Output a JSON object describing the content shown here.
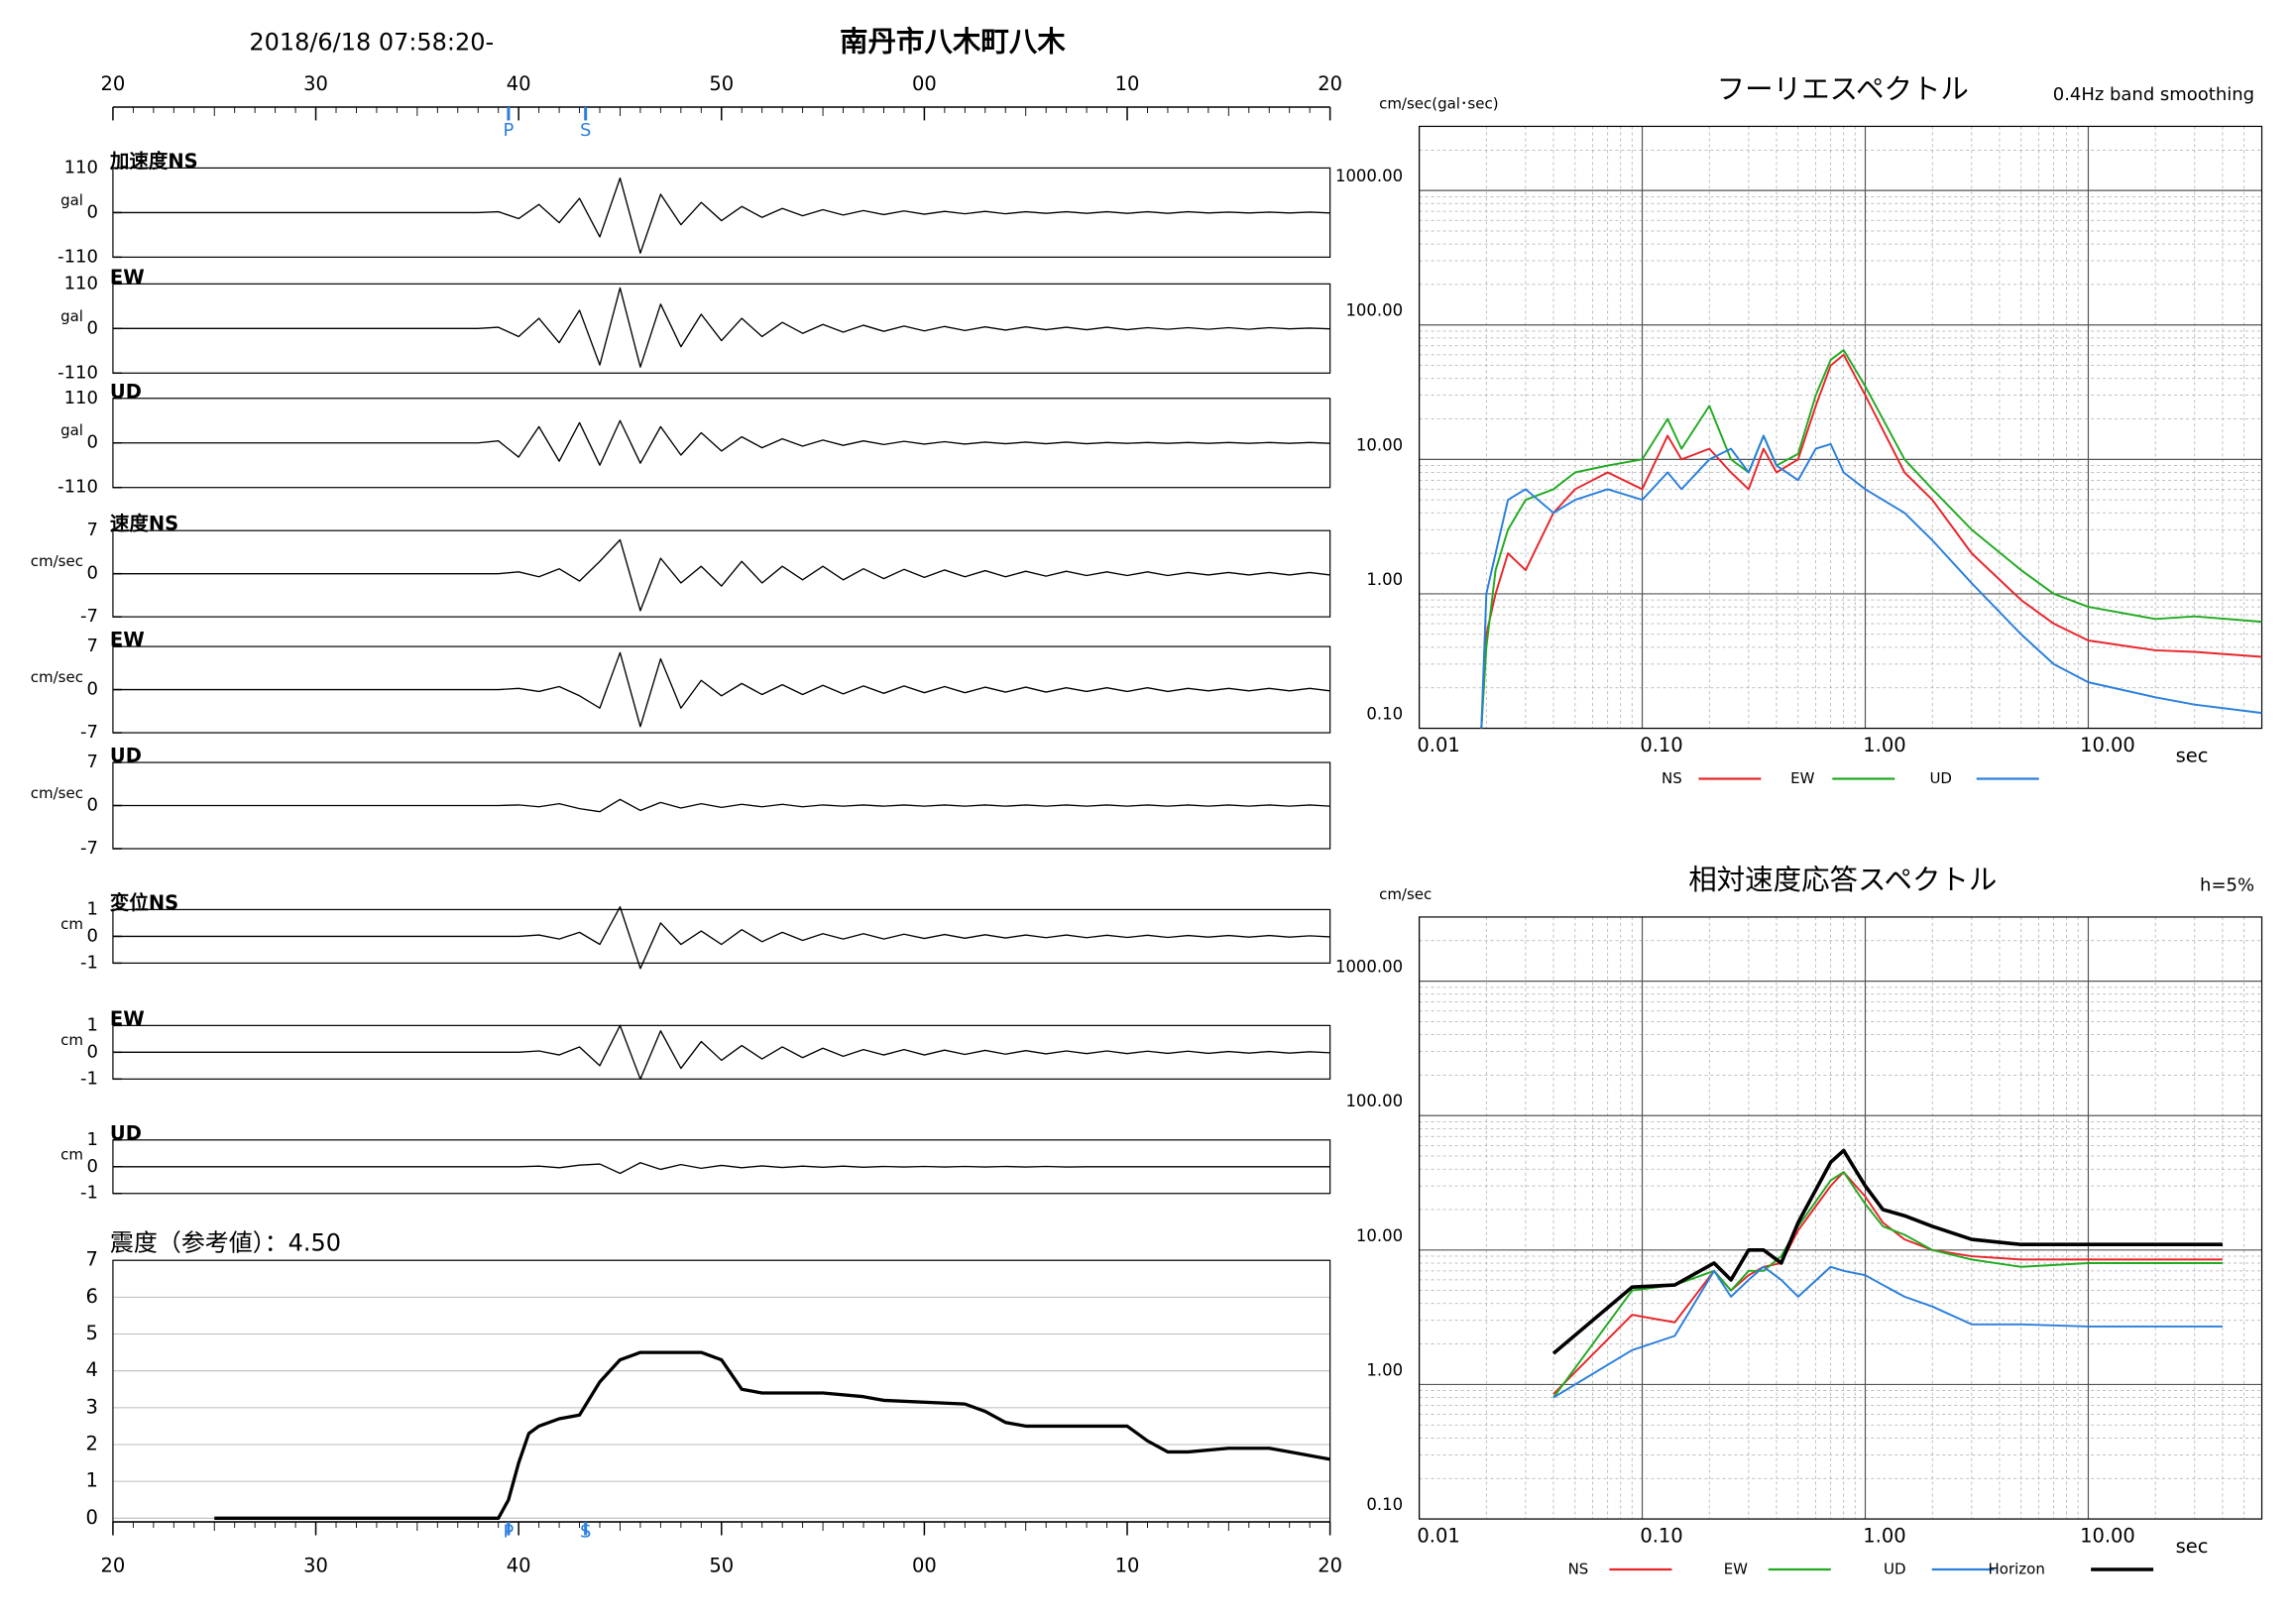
{
  "header": {
    "datetime": "2018/6/18 07:58:20-",
    "station": "南丹市八木町八木"
  },
  "time_axis": {
    "xlim": [
      20,
      80
    ],
    "xticks": [
      20,
      30,
      40,
      50,
      {
        "value": 60,
        "label": "00"
      },
      {
        "value": 70,
        "label": "10"
      },
      {
        "value": 80,
        "label": "20"
      }
    ],
    "markers": [
      {
        "label": "P",
        "value": 39.5
      },
      {
        "label": "S",
        "value": 43.3
      }
    ]
  },
  "chart_data": [
    {
      "type": "line",
      "label": "加速度NS",
      "unit": "gal",
      "ylim": [
        -110,
        110
      ],
      "yticks": [
        110,
        0,
        -110
      ],
      "color": "#000000",
      "x": [
        20,
        38,
        39,
        40,
        41,
        42,
        43,
        44,
        45,
        46,
        47,
        48,
        49,
        50,
        51,
        52,
        53,
        54,
        55,
        56,
        57,
        58,
        59,
        60,
        61,
        62,
        63,
        64,
        65,
        66,
        67,
        68,
        69,
        70,
        71,
        72,
        73,
        74,
        75,
        76,
        77,
        78,
        79,
        80
      ],
      "values": [
        0,
        0,
        2,
        -15,
        20,
        -25,
        35,
        -60,
        85,
        -100,
        45,
        -30,
        25,
        -20,
        15,
        -12,
        10,
        -8,
        7,
        -6,
        5,
        -5,
        4,
        -4,
        3,
        -3,
        3,
        -3,
        2,
        -2,
        2,
        -2,
        2,
        -2,
        2,
        -2,
        2,
        -1,
        1,
        -1,
        1,
        -1,
        1,
        -1
      ]
    },
    {
      "type": "line",
      "label": "EW",
      "unit": "gal",
      "ylim": [
        -110,
        110
      ],
      "yticks": [
        110,
        0,
        -110
      ],
      "color": "#000000",
      "x": [
        20,
        38,
        39,
        40,
        41,
        42,
        43,
        44,
        45,
        46,
        47,
        48,
        49,
        50,
        51,
        52,
        53,
        54,
        55,
        56,
        57,
        58,
        59,
        60,
        61,
        62,
        63,
        64,
        65,
        66,
        67,
        68,
        69,
        70,
        71,
        72,
        73,
        74,
        75,
        76,
        77,
        78,
        79,
        80
      ],
      "values": [
        0,
        0,
        3,
        -20,
        25,
        -35,
        45,
        -90,
        100,
        -95,
        60,
        -45,
        35,
        -30,
        25,
        -20,
        15,
        -12,
        10,
        -9,
        8,
        -7,
        6,
        -6,
        5,
        -5,
        4,
        -4,
        4,
        -3,
        3,
        -3,
        3,
        -3,
        2,
        -2,
        2,
        -2,
        2,
        -2,
        2,
        -1,
        1,
        -1
      ]
    },
    {
      "type": "line",
      "label": "UD",
      "unit": "gal",
      "ylim": [
        -110,
        110
      ],
      "yticks": [
        110,
        0,
        -110
      ],
      "color": "#000000",
      "x": [
        20,
        38,
        39,
        40,
        41,
        42,
        43,
        44,
        45,
        46,
        47,
        48,
        49,
        50,
        51,
        52,
        53,
        54,
        55,
        56,
        57,
        58,
        59,
        60,
        61,
        62,
        63,
        64,
        65,
        66,
        67,
        68,
        69,
        70,
        71,
        72,
        73,
        74,
        75,
        76,
        77,
        78,
        79,
        80
      ],
      "values": [
        0,
        0,
        5,
        -35,
        40,
        -45,
        50,
        -55,
        55,
        -50,
        40,
        -30,
        25,
        -20,
        15,
        -12,
        10,
        -8,
        7,
        -6,
        5,
        -4,
        4,
        -3,
        3,
        -3,
        2,
        -2,
        2,
        -2,
        2,
        -2,
        1,
        -1,
        1,
        -1,
        1,
        -1,
        1,
        -1,
        1,
        -1,
        1,
        -1
      ]
    },
    {
      "type": "line",
      "label": "速度NS",
      "unit": "cm/sec",
      "ylim": [
        -7,
        7
      ],
      "yticks": [
        7,
        0,
        -7
      ],
      "color": "#000000",
      "x": [
        20,
        38,
        39,
        40,
        41,
        42,
        43,
        44,
        45,
        46,
        47,
        48,
        49,
        50,
        51,
        52,
        53,
        54,
        55,
        56,
        57,
        58,
        59,
        60,
        61,
        62,
        63,
        64,
        65,
        66,
        67,
        68,
        69,
        70,
        71,
        72,
        73,
        74,
        75,
        76,
        77,
        78,
        79,
        80
      ],
      "values": [
        0,
        0,
        0,
        0.3,
        -0.5,
        0.8,
        -1.2,
        2,
        5.5,
        -6,
        2.5,
        -1.5,
        1.2,
        -2,
        2,
        -1.5,
        1.2,
        -1,
        1.2,
        -1,
        0.8,
        -0.8,
        0.7,
        -0.6,
        0.6,
        -0.5,
        0.5,
        -0.5,
        0.4,
        -0.4,
        0.4,
        -0.3,
        0.3,
        -0.3,
        0.3,
        -0.3,
        0.2,
        -0.2,
        0.2,
        -0.2,
        0.2,
        -0.2,
        0.2,
        -0.2
      ]
    },
    {
      "type": "line",
      "label": "EW",
      "unit": "cm/sec",
      "ylim": [
        -7,
        7
      ],
      "yticks": [
        7,
        0,
        -7
      ],
      "color": "#000000",
      "x": [
        20,
        38,
        39,
        40,
        41,
        42,
        43,
        44,
        45,
        46,
        47,
        48,
        49,
        50,
        51,
        52,
        53,
        54,
        55,
        56,
        57,
        58,
        59,
        60,
        61,
        62,
        63,
        64,
        65,
        66,
        67,
        68,
        69,
        70,
        71,
        72,
        73,
        74,
        75,
        76,
        77,
        78,
        79,
        80
      ],
      "values": [
        0,
        0,
        0,
        0.2,
        -0.3,
        0.5,
        -1,
        -3,
        6,
        -6,
        5,
        -3,
        1.5,
        -1,
        1,
        -0.8,
        0.8,
        -0.8,
        0.7,
        -0.7,
        0.6,
        -0.6,
        0.6,
        -0.5,
        0.5,
        -0.5,
        0.4,
        -0.4,
        0.4,
        -0.4,
        0.3,
        -0.3,
        0.3,
        -0.3,
        0.3,
        -0.3,
        0.2,
        -0.2,
        0.2,
        -0.2,
        0.2,
        -0.2,
        0.2,
        -0.2
      ]
    },
    {
      "type": "line",
      "label": "UD",
      "unit": "cm/sec",
      "ylim": [
        -7,
        7
      ],
      "yticks": [
        7,
        0,
        -7
      ],
      "color": "#000000",
      "x": [
        20,
        38,
        39,
        40,
        41,
        42,
        43,
        44,
        45,
        46,
        47,
        48,
        49,
        50,
        51,
        52,
        53,
        54,
        55,
        56,
        57,
        58,
        59,
        60,
        61,
        62,
        63,
        64,
        65,
        66,
        67,
        68,
        69,
        70,
        71,
        72,
        73,
        74,
        75,
        76,
        77,
        78,
        79,
        80
      ],
      "values": [
        0,
        0,
        0,
        0.1,
        -0.2,
        0.3,
        -0.5,
        -1,
        1,
        -0.8,
        0.5,
        -0.4,
        0.3,
        -0.3,
        0.2,
        -0.2,
        0.2,
        -0.2,
        0.1,
        -0.1,
        0.1,
        -0.1,
        0.1,
        -0.1,
        0.1,
        -0.1,
        0.1,
        -0.1,
        0.1,
        -0.1,
        0.1,
        -0.1,
        0.1,
        -0.1,
        0.1,
        -0.1,
        0.1,
        -0.1,
        0.1,
        -0.1,
        0.1,
        -0.1,
        0.1,
        -0.1
      ]
    },
    {
      "type": "line",
      "label": "変位NS",
      "unit": "cm",
      "ylim": [
        -1,
        1
      ],
      "yticks": [
        1,
        0,
        -1
      ],
      "color": "#000000",
      "x": [
        20,
        38,
        39,
        40,
        41,
        42,
        43,
        44,
        45,
        46,
        47,
        48,
        49,
        50,
        51,
        52,
        53,
        54,
        55,
        56,
        57,
        58,
        59,
        60,
        61,
        62,
        63,
        64,
        65,
        66,
        67,
        68,
        69,
        70,
        71,
        72,
        73,
        74,
        75,
        76,
        77,
        78,
        79,
        80
      ],
      "values": [
        0,
        0,
        0,
        0,
        0.05,
        -0.1,
        0.15,
        -0.3,
        1.1,
        -1.2,
        0.5,
        -0.3,
        0.2,
        -0.3,
        0.25,
        -0.2,
        0.15,
        -0.15,
        0.1,
        -0.1,
        0.1,
        -0.1,
        0.08,
        -0.08,
        0.07,
        -0.07,
        0.06,
        -0.06,
        0.05,
        -0.05,
        0.05,
        -0.05,
        0.04,
        -0.04,
        0.04,
        -0.04,
        0.03,
        -0.03,
        0.03,
        -0.03,
        0.03,
        -0.03,
        0.02,
        -0.02
      ]
    },
    {
      "type": "line",
      "label": "EW",
      "unit": "cm",
      "ylim": [
        -1,
        1
      ],
      "yticks": [
        1,
        0,
        -1
      ],
      "color": "#000000",
      "x": [
        20,
        38,
        39,
        40,
        41,
        42,
        43,
        44,
        45,
        46,
        47,
        48,
        49,
        50,
        51,
        52,
        53,
        54,
        55,
        56,
        57,
        58,
        59,
        60,
        61,
        62,
        63,
        64,
        65,
        66,
        67,
        68,
        69,
        70,
        71,
        72,
        73,
        74,
        75,
        76,
        77,
        78,
        79,
        80
      ],
      "values": [
        0,
        0,
        0,
        0,
        0.05,
        -0.1,
        0.2,
        -0.5,
        1,
        -1,
        0.8,
        -0.6,
        0.4,
        -0.3,
        0.25,
        -0.25,
        0.2,
        -0.2,
        0.15,
        -0.15,
        0.1,
        -0.1,
        0.1,
        -0.1,
        0.08,
        -0.08,
        0.07,
        -0.07,
        0.06,
        -0.06,
        0.05,
        -0.05,
        0.05,
        -0.05,
        0.04,
        -0.04,
        0.04,
        -0.04,
        0.03,
        -0.03,
        0.03,
        -0.03,
        0.02,
        -0.02
      ]
    },
    {
      "type": "line",
      "label": "UD",
      "unit": "cm",
      "ylim": [
        -1,
        1
      ],
      "yticks": [
        1,
        0,
        -1
      ],
      "color": "#000000",
      "x": [
        20,
        38,
        39,
        40,
        41,
        42,
        43,
        44,
        45,
        46,
        47,
        48,
        49,
        50,
        51,
        52,
        53,
        54,
        55,
        56,
        57,
        58,
        59,
        60,
        61,
        62,
        63,
        64,
        65,
        66,
        67,
        68,
        69,
        70,
        71,
        72,
        73,
        74,
        75,
        76,
        77,
        78,
        79,
        80
      ],
      "values": [
        0,
        0,
        0,
        0,
        0.02,
        -0.04,
        0.06,
        0.1,
        -0.25,
        0.15,
        -0.1,
        0.08,
        -0.06,
        0.05,
        -0.04,
        0.03,
        -0.03,
        0.02,
        -0.02,
        0.02,
        -0.02,
        0.01,
        -0.01,
        0.01,
        -0.01,
        0.01,
        -0.01,
        0.01,
        -0.01,
        0.01,
        -0.01,
        0,
        0,
        0,
        0,
        0,
        0,
        0,
        0,
        0,
        0,
        0,
        0,
        0
      ]
    },
    {
      "type": "line",
      "title": "震度（参考値）：4.50",
      "ylim": [
        -0.1,
        7
      ],
      "yticks": [
        0,
        1,
        2,
        3,
        4,
        5,
        6,
        7
      ],
      "grid": true,
      "color": "#000000",
      "x": [
        25,
        39,
        39.5,
        40,
        40.5,
        41,
        42,
        43,
        44,
        45,
        46,
        49,
        50,
        51,
        52,
        55,
        57,
        58,
        62,
        63,
        64,
        65,
        70,
        71,
        72,
        73,
        75,
        77,
        78,
        79,
        80
      ],
      "values": [
        0,
        0,
        0.5,
        1.5,
        2.3,
        2.5,
        2.7,
        2.8,
        3.7,
        4.3,
        4.5,
        4.5,
        4.3,
        3.5,
        3.4,
        3.4,
        3.3,
        3.2,
        3.1,
        2.9,
        2.6,
        2.5,
        2.5,
        2.1,
        1.8,
        1.8,
        1.9,
        1.9,
        1.8,
        1.7,
        1.6
      ]
    },
    {
      "type": "line",
      "title": "フーリエスペクトル",
      "note": "0.4Hz band smoothing",
      "y_unit": "cm/sec(gal･sec)",
      "x_label": "sec",
      "log_x": true,
      "log_y": true,
      "grid": true,
      "minor_grid": true,
      "xlim": [
        0.01,
        60
      ],
      "ylim": [
        0.1,
        3000
      ],
      "xticks": [
        0.01,
        {
          "value": 0.1,
          "label": "0.10"
        },
        {
          "value": 1,
          "label": "1.00"
        },
        {
          "value": 10,
          "label": "10.00"
        }
      ],
      "yticks": [
        {
          "value": 0.1,
          "label": "0.10"
        },
        {
          "value": 1,
          "label": "1.00"
        },
        {
          "value": 10,
          "label": "10.00"
        },
        {
          "value": 100,
          "label": "100.00"
        },
        {
          "value": 1000,
          "label": "1000.00"
        }
      ],
      "x": [
        0.019,
        0.02,
        0.022,
        0.025,
        0.03,
        0.04,
        0.05,
        0.07,
        0.1,
        0.13,
        0.15,
        0.2,
        0.25,
        0.3,
        0.35,
        0.4,
        0.5,
        0.6,
        0.7,
        0.8,
        1,
        1.5,
        2,
        3,
        5,
        7,
        10,
        20,
        30,
        60
      ],
      "series": [
        {
          "name": "NS",
          "color": "#e8262b",
          "values": [
            0.1,
            0.5,
            1,
            2,
            1.5,
            4,
            6,
            8,
            6,
            15,
            10,
            12,
            8,
            6,
            12,
            8,
            10,
            25,
            50,
            60,
            30,
            8,
            5,
            2,
            0.9,
            0.6,
            0.45,
            0.38,
            0.37,
            0.34
          ]
        },
        {
          "name": "EW",
          "color": "#22aa22",
          "values": [
            0.1,
            0.4,
            1.5,
            3,
            5,
            6,
            8,
            9,
            10,
            20,
            12,
            25,
            10,
            8,
            15,
            9,
            11,
            30,
            55,
            65,
            35,
            10,
            6,
            3,
            1.5,
            1,
            0.8,
            0.65,
            0.68,
            0.62
          ]
        },
        {
          "name": "UD",
          "color": "#2a7fdc",
          "values": [
            0.1,
            1,
            2,
            5,
            6,
            4,
            5,
            6,
            5,
            8,
            6,
            10,
            12,
            8,
            15,
            9,
            7,
            12,
            13,
            8,
            6,
            4,
            2.5,
            1.2,
            0.5,
            0.3,
            0.22,
            0.17,
            0.15,
            0.13
          ]
        }
      ]
    },
    {
      "type": "line",
      "title": "相対速度応答スペクトル",
      "note": "h=5%",
      "y_unit": "cm/sec",
      "x_label": "sec",
      "log_x": true,
      "log_y": true,
      "grid": true,
      "minor_grid": true,
      "xlim": [
        0.01,
        60
      ],
      "ylim": [
        0.1,
        3000
      ],
      "xticks": [
        0.01,
        {
          "value": 0.1,
          "label": "0.10"
        },
        {
          "value": 1,
          "label": "1.00"
        },
        {
          "value": 10,
          "label": "10.00"
        }
      ],
      "yticks": [
        {
          "value": 0.1,
          "label": "0.10"
        },
        {
          "value": 1,
          "label": "1.00"
        },
        {
          "value": 10,
          "label": "10.00"
        },
        {
          "value": 100,
          "label": "100.00"
        },
        {
          "value": 1000,
          "label": "1000.00"
        }
      ],
      "x": [
        0.04,
        0.09,
        0.14,
        0.21,
        0.25,
        0.3,
        0.35,
        0.42,
        0.5,
        0.7,
        0.8,
        1,
        1.2,
        1.5,
        2,
        3,
        5,
        10,
        40
      ],
      "series": [
        {
          "name": "NS",
          "color": "#e8262b",
          "values": [
            0.85,
            3.3,
            2.9,
            7,
            5,
            6.5,
            7.5,
            8,
            14,
            30,
            38,
            25,
            16,
            12,
            10,
            9,
            8.5,
            8.5,
            8.5
          ]
        },
        {
          "name": "EW",
          "color": "#22aa22",
          "values": [
            0.8,
            5,
            5.5,
            7,
            5,
            7,
            7,
            9,
            15,
            33,
            38,
            22,
            15,
            13,
            10,
            8.5,
            7.5,
            8,
            8
          ]
        },
        {
          "name": "UD",
          "color": "#2a7fdc",
          "values": [
            0.8,
            1.8,
            2.3,
            7,
            4.5,
            6,
            7.5,
            6,
            4.5,
            7.5,
            7,
            6.5,
            5.5,
            4.5,
            3.8,
            2.8,
            2.8,
            2.7,
            2.7
          ]
        },
        {
          "name": "Horizon",
          "color": "#000000",
          "values": [
            1.7,
            5.3,
            5.5,
            8,
            6,
            10,
            10,
            8,
            16,
            45,
            55,
            30,
            20,
            18,
            15,
            12,
            11,
            11,
            11
          ]
        }
      ]
    }
  ]
}
